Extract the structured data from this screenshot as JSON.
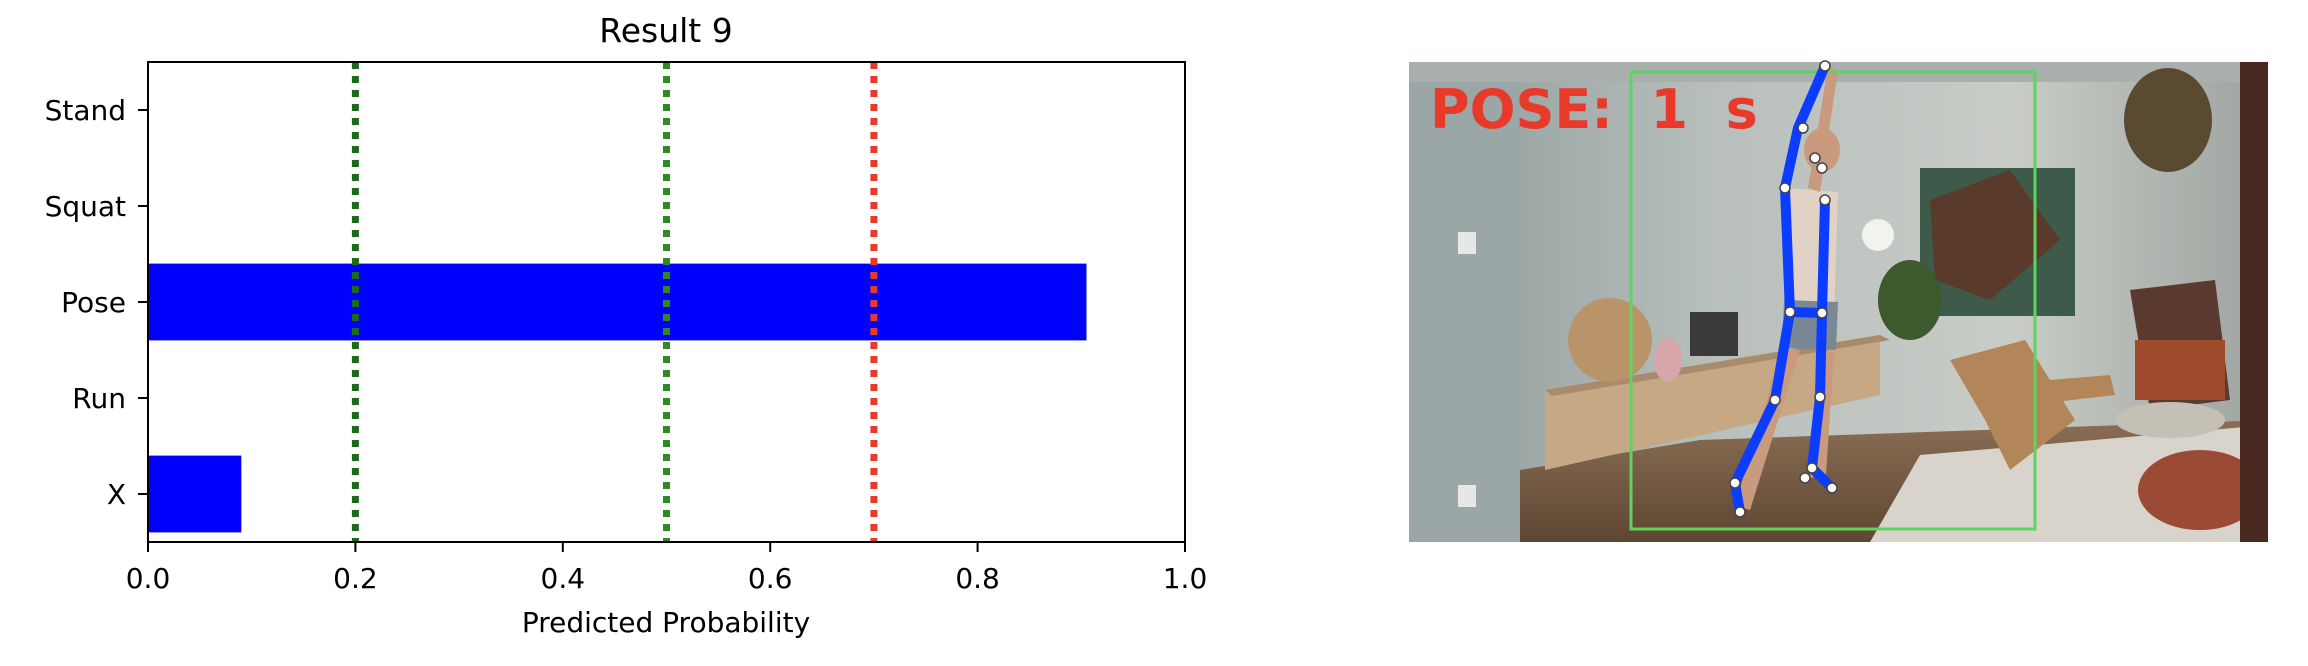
{
  "chart_data": {
    "type": "bar",
    "orientation": "horizontal",
    "title": "Result 9",
    "xlabel": "Predicted Probability",
    "ylabel": "",
    "categories": [
      "Stand",
      "Squat",
      "Pose",
      "Run",
      "X"
    ],
    "values": [
      0.0,
      0.0,
      0.905,
      0.0,
      0.09
    ],
    "xlim": [
      0.0,
      1.0
    ],
    "xticks": [
      "0.0",
      "0.2",
      "0.4",
      "0.6",
      "0.8",
      "1.0"
    ],
    "bar_color": "#0000ff",
    "threshold_lines": [
      {
        "value": 0.2,
        "color": "#1b6b1b"
      },
      {
        "value": 0.5,
        "color": "#2e8b22"
      },
      {
        "value": 0.7,
        "color": "#e83a2a"
      }
    ],
    "grid": false,
    "legend": "none"
  },
  "video_panel": {
    "overlay_text": "POSE:  1  s",
    "overlay_color": "#e8392a",
    "box_color": "#5fd35f",
    "skeleton_color": "#0b3cff",
    "joint_color": "#ffffff"
  }
}
